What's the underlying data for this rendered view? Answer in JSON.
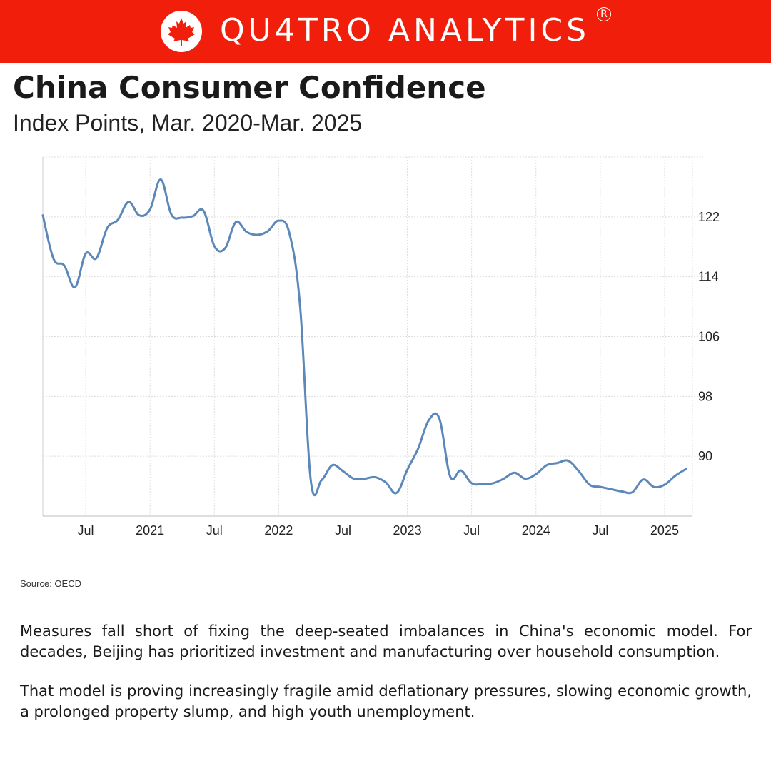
{
  "brand": {
    "name": "QU4TRO ANALYTICS",
    "reg": "R"
  },
  "header": {
    "title": "China Consumer Confidence",
    "subtitle": "Index Points, Mar. 2020-Mar. 2025"
  },
  "source": "Source: OECD",
  "body": {
    "p1": "Measures fall short of fixing the deep-seated imbalances in China's economic model. For decades, Beijing has prioritized investment and manufacturing over household consumption.",
    "p2": "That model is proving increasingly fragile amid deflationary pressures, slowing economic growth, a prolonged property slump, and high youth unemployment."
  },
  "colors": {
    "banner": "#f01e0a",
    "line": "#5b87b9",
    "grid": "#dddddd"
  },
  "icons": {
    "logo": "maple-leaf-icon"
  },
  "chart_data": {
    "type": "line",
    "title": "China Consumer Confidence",
    "subtitle": "Index Points, Mar. 2020-Mar. 2025",
    "xlabel": "",
    "ylabel": "",
    "ylim": [
      82,
      130
    ],
    "yticks": [
      90,
      98,
      106,
      114,
      122
    ],
    "xticks": [
      {
        "label": "Jul",
        "month": 4
      },
      {
        "label": "2021",
        "month": 10
      },
      {
        "label": "Jul",
        "month": 16
      },
      {
        "label": "2022",
        "month": 22
      },
      {
        "label": "Jul",
        "month": 28
      },
      {
        "label": "2023",
        "month": 34
      },
      {
        "label": "Jul",
        "month": 40
      },
      {
        "label": "2024",
        "month": 46
      },
      {
        "label": "Jul",
        "month": 52
      },
      {
        "label": "2025",
        "month": 58
      }
    ],
    "grid": true,
    "y_axis_position": "right",
    "series": [
      {
        "x": [
          "2020-03",
          "2020-04",
          "2020-05",
          "2020-06",
          "2020-07",
          "2020-08",
          "2020-09",
          "2020-10",
          "2020-11",
          "2020-12",
          "2021-01",
          "2021-02",
          "2021-03",
          "2021-04",
          "2021-05",
          "2021-06",
          "2021-07",
          "2021-08",
          "2021-09",
          "2021-10",
          "2021-11",
          "2021-12",
          "2022-01",
          "2022-02",
          "2022-03",
          "2022-04",
          "2022-05",
          "2022-06",
          "2022-07",
          "2022-08",
          "2022-09",
          "2022-10",
          "2022-11",
          "2022-12",
          "2023-01",
          "2023-02",
          "2023-03",
          "2023-04",
          "2023-05",
          "2023-06",
          "2023-07",
          "2023-08",
          "2023-09",
          "2023-10",
          "2023-11",
          "2023-12",
          "2024-01",
          "2024-02",
          "2024-03",
          "2024-04",
          "2024-05",
          "2024-06",
          "2024-07",
          "2024-08",
          "2024-09",
          "2024-10",
          "2024-11",
          "2024-12",
          "2025-01",
          "2025-02",
          "2025-03"
        ],
        "values": [
          122.2,
          116.4,
          115.5,
          112.6,
          117.1,
          116.5,
          120.5,
          121.6,
          124.0,
          122.2,
          123.0,
          127.0,
          122.3,
          121.9,
          122.1,
          122.8,
          118.1,
          117.8,
          121.3,
          120.0,
          119.6,
          120.1,
          121.5,
          119.8,
          110.0,
          86.7,
          86.8,
          88.8,
          88.0,
          87.0,
          87.0,
          87.2,
          86.5,
          85.1,
          88.2,
          91.0,
          94.8,
          95.0,
          87.3,
          88.1,
          86.4,
          86.3,
          86.4,
          87.0,
          87.8,
          87.0,
          87.6,
          88.8,
          89.1,
          89.4,
          88.0,
          86.2,
          85.9,
          85.6,
          85.3,
          85.2,
          86.9,
          85.9,
          86.2,
          87.4,
          88.3
        ]
      }
    ]
  }
}
